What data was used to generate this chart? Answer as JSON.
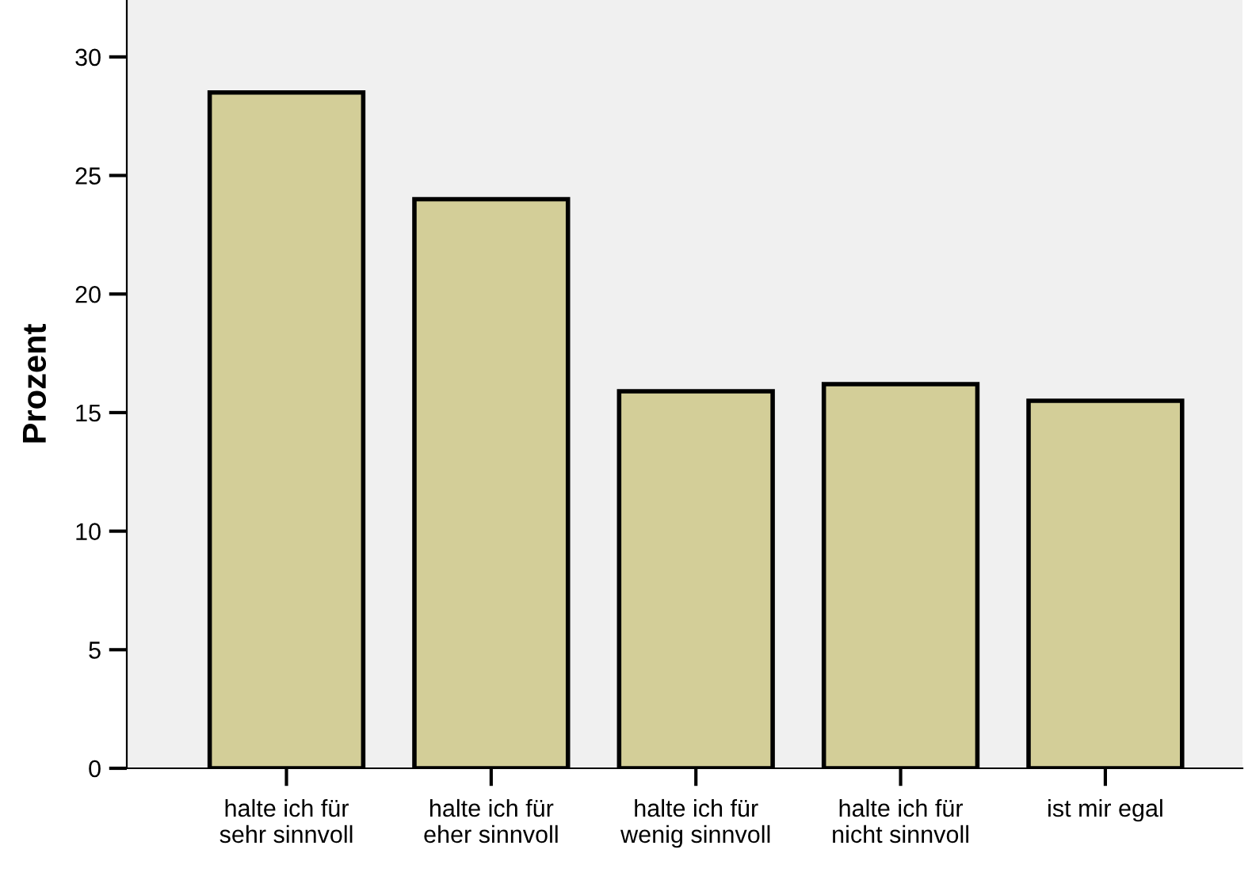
{
  "chart_data": {
    "type": "bar",
    "ylabel": "Prozent",
    "categories": [
      "halte ich für\nsehr sinnvoll",
      "halte ich für\neher sinnvoll",
      "halte ich für\nwenig sinnvoll",
      "halte ich für\nnicht sinnvoll",
      "ist mir egal"
    ],
    "values": [
      28.5,
      24.0,
      15.9,
      16.2,
      15.5
    ],
    "color": "#d3ce98",
    "ylim": [
      0,
      32.4
    ],
    "yticks": [
      0,
      5,
      10,
      15,
      20,
      25,
      30
    ],
    "grid": false
  }
}
